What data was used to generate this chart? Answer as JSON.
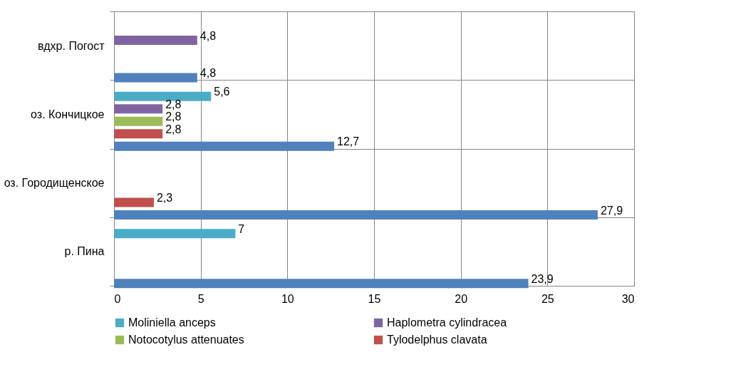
{
  "chart_data": {
    "type": "bar",
    "orientation": "horizontal",
    "categories": [
      "вдхр. Погост",
      "оз. Кончицкое",
      "оз. Городищенское",
      "р. Пина"
    ],
    "series": [
      {
        "color": "#4f81bd",
        "values": [
          4.8,
          12.7,
          27.9,
          23.9
        ],
        "value_labels": [
          "4,8",
          "12,7",
          "27,9",
          "23,9"
        ]
      },
      {
        "name": "Tylodelphus clavata",
        "color": "#c0504d",
        "values": [
          null,
          2.8,
          2.3,
          null
        ],
        "value_labels": [
          null,
          "2,8",
          "2,3",
          null
        ]
      },
      {
        "name": "Notocotylus attenuates",
        "color": "#9bbb59",
        "values": [
          null,
          2.8,
          null,
          null
        ],
        "value_labels": [
          null,
          "2,8",
          null,
          null
        ]
      },
      {
        "name": "Haplometra cylindracea",
        "color": "#8064a2",
        "values": [
          4.8,
          2.8,
          null,
          null
        ],
        "value_labels": [
          "4,8",
          "2,8",
          null,
          null
        ]
      },
      {
        "name": "Moliniella anceps",
        "color": "#4bacc6",
        "values": [
          null,
          5.6,
          null,
          7
        ],
        "value_labels": [
          null,
          "5,6",
          null,
          "7"
        ]
      }
    ],
    "xlim": [
      0,
      30
    ],
    "xticks": [
      0,
      5,
      10,
      15,
      20,
      25,
      30
    ],
    "grid": true,
    "legend": "bottom"
  }
}
